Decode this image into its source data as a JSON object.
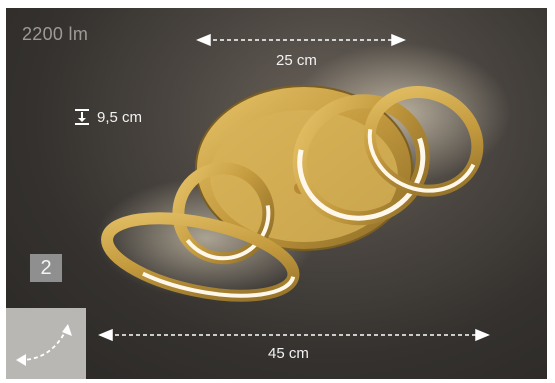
{
  "lumen": "2200 lm",
  "width_top": "25 cm",
  "height": "9,5 cm",
  "width_bottom": "45 cm",
  "badge": "2",
  "icons": {
    "height": "height-dimension-icon",
    "rotate": "rotate-arrows-icon"
  },
  "colors": {
    "background": "#2f2c2a",
    "gold": "#c9a24a",
    "light": "#fff6e6",
    "badge": "#8f8f8f"
  }
}
